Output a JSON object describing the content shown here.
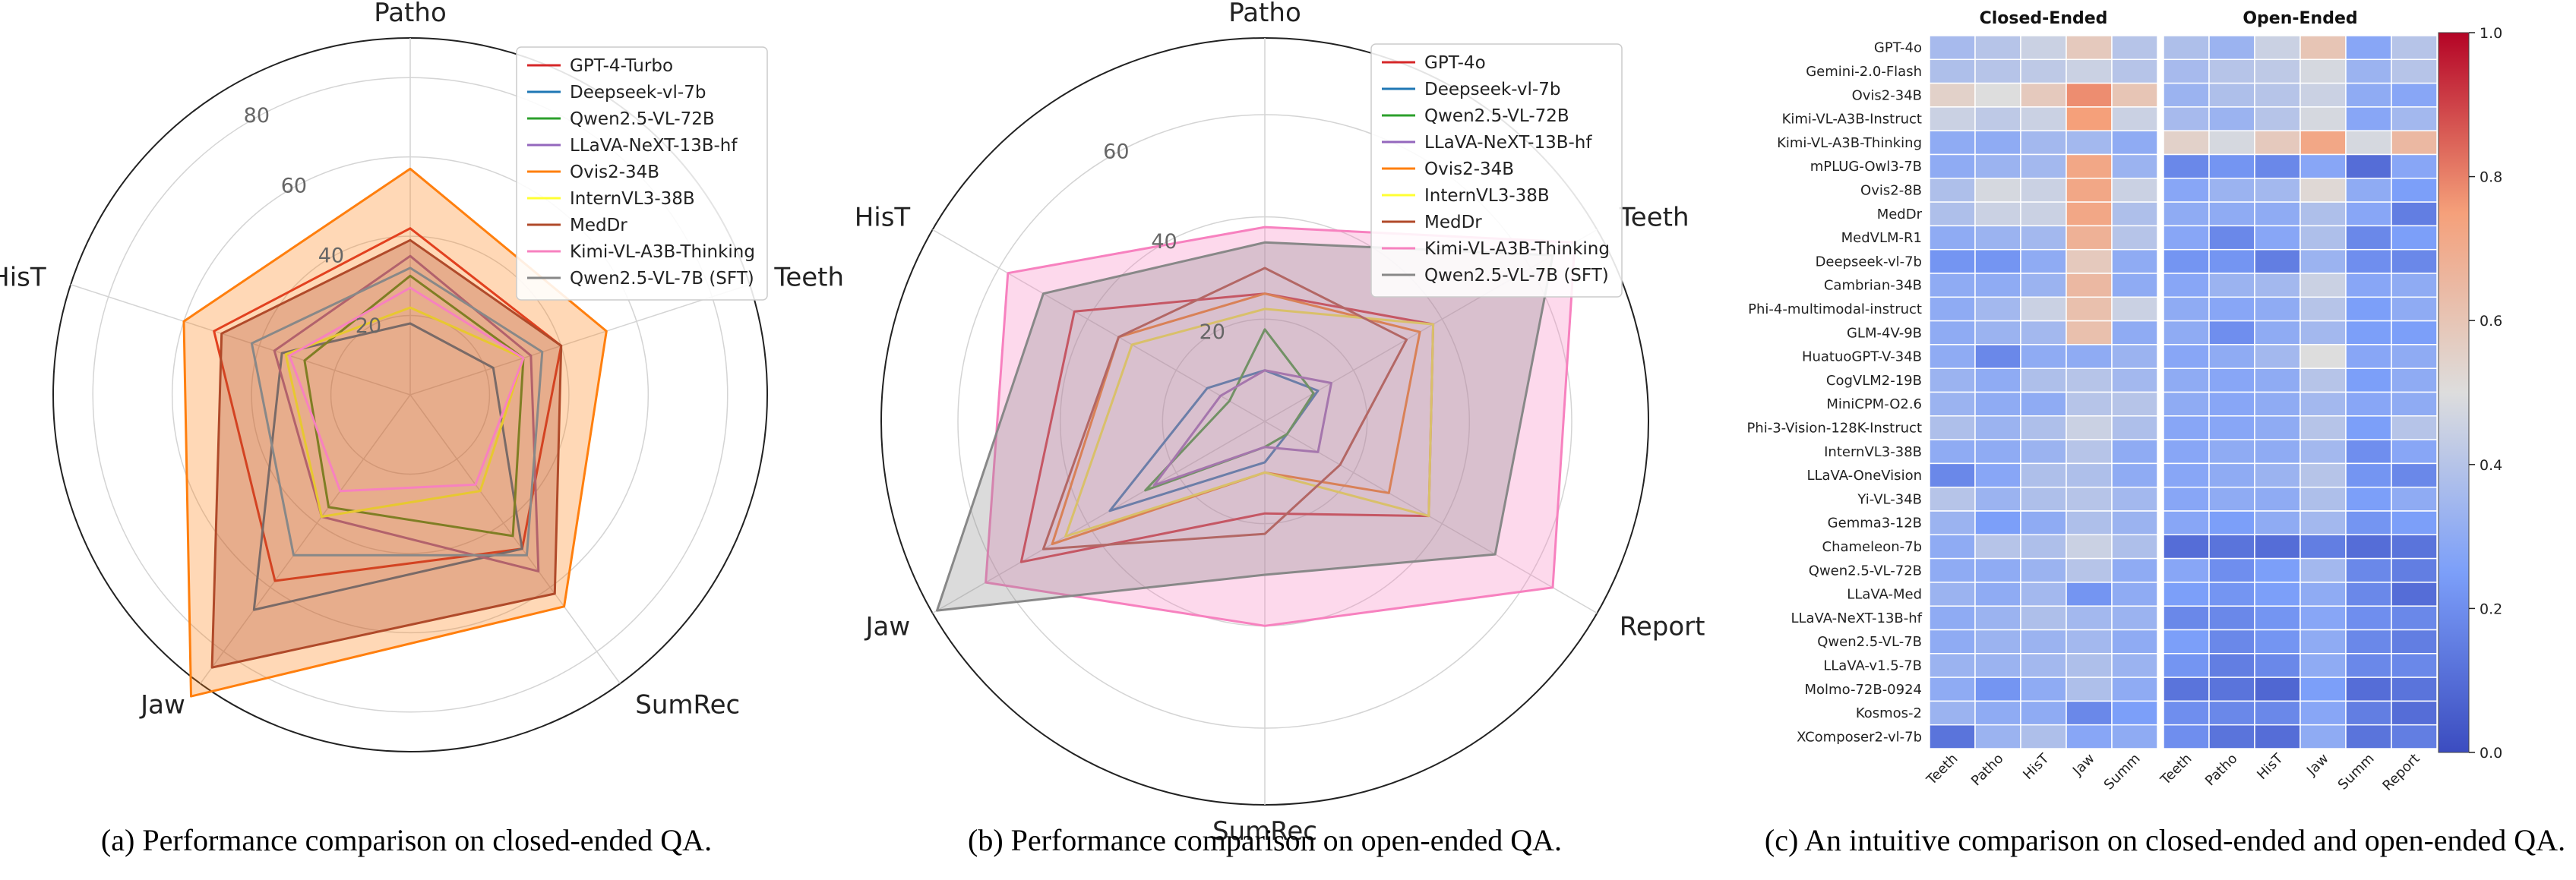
{
  "chart_data": [
    {
      "type": "radar",
      "caption": "(a) Performance comparison on closed-ended QA.",
      "axes": [
        "Patho",
        "Teeth",
        "SumRec",
        "Jaw",
        "HisT"
      ],
      "rlim": [
        0,
        90
      ],
      "rticks": [
        20,
        40,
        60,
        80
      ],
      "legend_position": "top-right",
      "series": [
        {
          "name": "GPT-4-Turbo",
          "color": "#d62728",
          "values": [
            42,
            40,
            48,
            58,
            52
          ]
        },
        {
          "name": "Deepseek-vl-7b",
          "color": "#1f77b4",
          "values": [
            18,
            22,
            48,
            67,
            34
          ]
        },
        {
          "name": "Qwen2.5-VL-72B",
          "color": "#2ca02c",
          "values": [
            30,
            30,
            44,
            35,
            28
          ]
        },
        {
          "name": "LLaVA-NeXT-13B-hf",
          "color": "#9467bd",
          "values": [
            35,
            32,
            55,
            38,
            36
          ]
        },
        {
          "name": "Ovis2-34B",
          "color": "#ff7f0e",
          "fill": true,
          "values": [
            57,
            52,
            66,
            94,
            60
          ]
        },
        {
          "name": "InternVL3-38B",
          "color": "#ffff33",
          "values": [
            22,
            30,
            30,
            38,
            33
          ]
        },
        {
          "name": "MedDr",
          "color": "#b04a2a",
          "fill": true,
          "values": [
            39,
            40,
            62,
            85,
            50
          ]
        },
        {
          "name": "Kimi-VL-A3B-Thinking",
          "color": "#f781bf",
          "values": [
            27,
            30,
            28,
            30,
            32
          ]
        },
        {
          "name": "Qwen2.5-VL-7B (SFT)",
          "color": "#888888",
          "values": [
            32,
            35,
            50,
            50,
            42
          ]
        }
      ]
    },
    {
      "type": "radar",
      "caption": "(b) Performance comparison on open-ended QA.",
      "axes": [
        "Patho",
        "Teeth",
        "Report",
        "SumRec",
        "Jaw",
        "HisT"
      ],
      "rlim": [
        0,
        75
      ],
      "rticks": [
        20,
        40,
        60
      ],
      "legend_position": "top-right",
      "series": [
        {
          "name": "GPT-4o",
          "color": "#d62728",
          "values": [
            25,
            38,
            37,
            18,
            55,
            43
          ]
        },
        {
          "name": "Deepseek-vl-7b",
          "color": "#1f77b4",
          "values": [
            10,
            12,
            5,
            8,
            35,
            13
          ]
        },
        {
          "name": "Qwen2.5-VL-72B",
          "color": "#2ca02c",
          "values": [
            18,
            11,
            5,
            5,
            27,
            8
          ]
        },
        {
          "name": "LLaVA-NeXT-13B-hf",
          "color": "#9467bd",
          "values": [
            10,
            15,
            12,
            5,
            25,
            10
          ]
        },
        {
          "name": "Ovis2-34B",
          "color": "#ff7f0e",
          "values": [
            25,
            35,
            28,
            10,
            48,
            33
          ]
        },
        {
          "name": "InternVL3-38B",
          "color": "#ffff33",
          "values": [
            22,
            38,
            37,
            10,
            45,
            30
          ]
        },
        {
          "name": "MedDr",
          "color": "#b04a2a",
          "values": [
            30,
            32,
            17,
            22,
            50,
            33
          ]
        },
        {
          "name": "Kimi-VL-A3B-Thinking",
          "color": "#f781bf",
          "fill": true,
          "values": [
            38,
            70,
            65,
            40,
            63,
            58
          ]
        },
        {
          "name": "Qwen2.5-VL-7B (SFT)",
          "color": "#888888",
          "fill": true,
          "values": [
            35,
            65,
            52,
            30,
            74,
            50
          ]
        }
      ]
    },
    {
      "type": "heatmap",
      "caption": "(c) An intuitive comparison on closed-ended and open-ended QA.",
      "groups": [
        {
          "title": "Closed-Ended",
          "columns": [
            "Teeth",
            "Patho",
            "HisT",
            "Jaw",
            "Summ"
          ]
        },
        {
          "title": "Open-Ended",
          "columns": [
            "Teeth",
            "Patho",
            "HisT",
            "Jaw",
            "Summ",
            "Report"
          ]
        }
      ],
      "colorbar": {
        "range": [
          0.0,
          1.0
        ],
        "ticks": [
          "0.0",
          "0.2",
          "0.4",
          "0.6",
          "0.8",
          "1.0"
        ],
        "colormap": "coolwarm"
      },
      "rows": [
        "GPT-4o",
        "Gemini-2.0-Flash",
        "Ovis2-34B",
        "Kimi-VL-A3B-Instruct",
        "Kimi-VL-A3B-Thinking",
        "mPLUG-Owl3-7B",
        "Ovis2-8B",
        "MedDr",
        "MedVLM-R1",
        "Deepseek-vl-7b",
        "Cambrian-34B",
        "Phi-4-multimodal-instruct",
        "GLM-4V-9B",
        "HuatuoGPT-V-34B",
        "CogVLM2-19B",
        "MiniCPM-O2.6",
        "Phi-3-Vision-128K-Instruct",
        "InternVL3-38B",
        "LLaVA-OneVision",
        "Yi-VL-34B",
        "Gemma3-12B",
        "Chameleon-7b",
        "Qwen2.5-VL-72B",
        "LLaVA-Med",
        "LLaVA-NeXT-13B-hf",
        "Qwen2.5-VL-7B",
        "LLaVA-v1.5-7B",
        "Molmo-72B-0924",
        "Kosmos-2",
        "XComposer2-vl-7b"
      ],
      "values": [
        [
          0.36,
          0.4,
          0.45,
          0.58,
          0.4,
          0.38,
          0.33,
          0.45,
          0.6,
          0.28,
          0.4
        ],
        [
          0.38,
          0.4,
          0.42,
          0.45,
          0.4,
          0.36,
          0.4,
          0.42,
          0.48,
          0.33,
          0.4
        ],
        [
          0.55,
          0.5,
          0.58,
          0.78,
          0.6,
          0.33,
          0.38,
          0.4,
          0.45,
          0.3,
          0.28
        ],
        [
          0.45,
          0.42,
          0.45,
          0.75,
          0.45,
          0.36,
          0.33,
          0.4,
          0.48,
          0.28,
          0.35
        ],
        [
          0.3,
          0.3,
          0.35,
          0.35,
          0.3,
          0.55,
          0.48,
          0.58,
          0.72,
          0.48,
          0.65
        ],
        [
          0.3,
          0.33,
          0.35,
          0.72,
          0.33,
          0.18,
          0.22,
          0.18,
          0.28,
          0.1,
          0.28
        ],
        [
          0.38,
          0.48,
          0.45,
          0.72,
          0.45,
          0.28,
          0.33,
          0.35,
          0.52,
          0.3,
          0.25
        ],
        [
          0.38,
          0.45,
          0.45,
          0.72,
          0.38,
          0.3,
          0.3,
          0.3,
          0.38,
          0.28,
          0.15
        ],
        [
          0.3,
          0.33,
          0.35,
          0.68,
          0.4,
          0.28,
          0.18,
          0.28,
          0.38,
          0.18,
          0.25
        ],
        [
          0.22,
          0.22,
          0.3,
          0.58,
          0.3,
          0.22,
          0.22,
          0.15,
          0.33,
          0.2,
          0.18
        ],
        [
          0.3,
          0.3,
          0.33,
          0.65,
          0.3,
          0.28,
          0.33,
          0.35,
          0.45,
          0.28,
          0.3
        ],
        [
          0.3,
          0.35,
          0.45,
          0.62,
          0.45,
          0.3,
          0.28,
          0.3,
          0.4,
          0.25,
          0.3
        ],
        [
          0.3,
          0.33,
          0.35,
          0.62,
          0.3,
          0.3,
          0.2,
          0.3,
          0.35,
          0.25,
          0.25
        ],
        [
          0.3,
          0.18,
          0.3,
          0.3,
          0.33,
          0.28,
          0.3,
          0.35,
          0.5,
          0.28,
          0.3
        ],
        [
          0.33,
          0.3,
          0.38,
          0.4,
          0.35,
          0.3,
          0.28,
          0.3,
          0.4,
          0.25,
          0.3
        ],
        [
          0.33,
          0.3,
          0.3,
          0.4,
          0.4,
          0.3,
          0.28,
          0.3,
          0.35,
          0.28,
          0.3
        ],
        [
          0.38,
          0.33,
          0.38,
          0.45,
          0.38,
          0.28,
          0.28,
          0.3,
          0.4,
          0.25,
          0.4
        ],
        [
          0.3,
          0.3,
          0.33,
          0.4,
          0.3,
          0.28,
          0.3,
          0.3,
          0.35,
          0.2,
          0.28
        ],
        [
          0.18,
          0.28,
          0.38,
          0.38,
          0.3,
          0.28,
          0.3,
          0.33,
          0.4,
          0.22,
          0.18
        ],
        [
          0.4,
          0.33,
          0.38,
          0.4,
          0.35,
          0.28,
          0.3,
          0.3,
          0.38,
          0.25,
          0.3
        ],
        [
          0.33,
          0.25,
          0.3,
          0.38,
          0.33,
          0.28,
          0.25,
          0.3,
          0.35,
          0.22,
          0.25
        ],
        [
          0.3,
          0.4,
          0.38,
          0.45,
          0.38,
          0.1,
          0.12,
          0.1,
          0.15,
          0.1,
          0.12
        ],
        [
          0.3,
          0.3,
          0.33,
          0.4,
          0.3,
          0.28,
          0.2,
          0.25,
          0.35,
          0.18,
          0.15
        ],
        [
          0.33,
          0.3,
          0.35,
          0.22,
          0.3,
          0.25,
          0.22,
          0.25,
          0.3,
          0.18,
          0.1
        ],
        [
          0.3,
          0.33,
          0.38,
          0.35,
          0.33,
          0.18,
          0.18,
          0.22,
          0.28,
          0.2,
          0.18
        ],
        [
          0.3,
          0.33,
          0.33,
          0.35,
          0.3,
          0.25,
          0.18,
          0.22,
          0.3,
          0.18,
          0.15
        ],
        [
          0.33,
          0.33,
          0.35,
          0.38,
          0.33,
          0.22,
          0.15,
          0.18,
          0.3,
          0.18,
          0.18
        ],
        [
          0.3,
          0.22,
          0.3,
          0.38,
          0.3,
          0.12,
          0.12,
          0.08,
          0.25,
          0.1,
          0.12
        ],
        [
          0.33,
          0.3,
          0.3,
          0.18,
          0.25,
          0.2,
          0.18,
          0.18,
          0.28,
          0.15,
          0.1
        ],
        [
          0.12,
          0.33,
          0.38,
          0.28,
          0.3,
          0.2,
          0.12,
          0.1,
          0.3,
          0.12,
          0.15
        ]
      ]
    }
  ]
}
